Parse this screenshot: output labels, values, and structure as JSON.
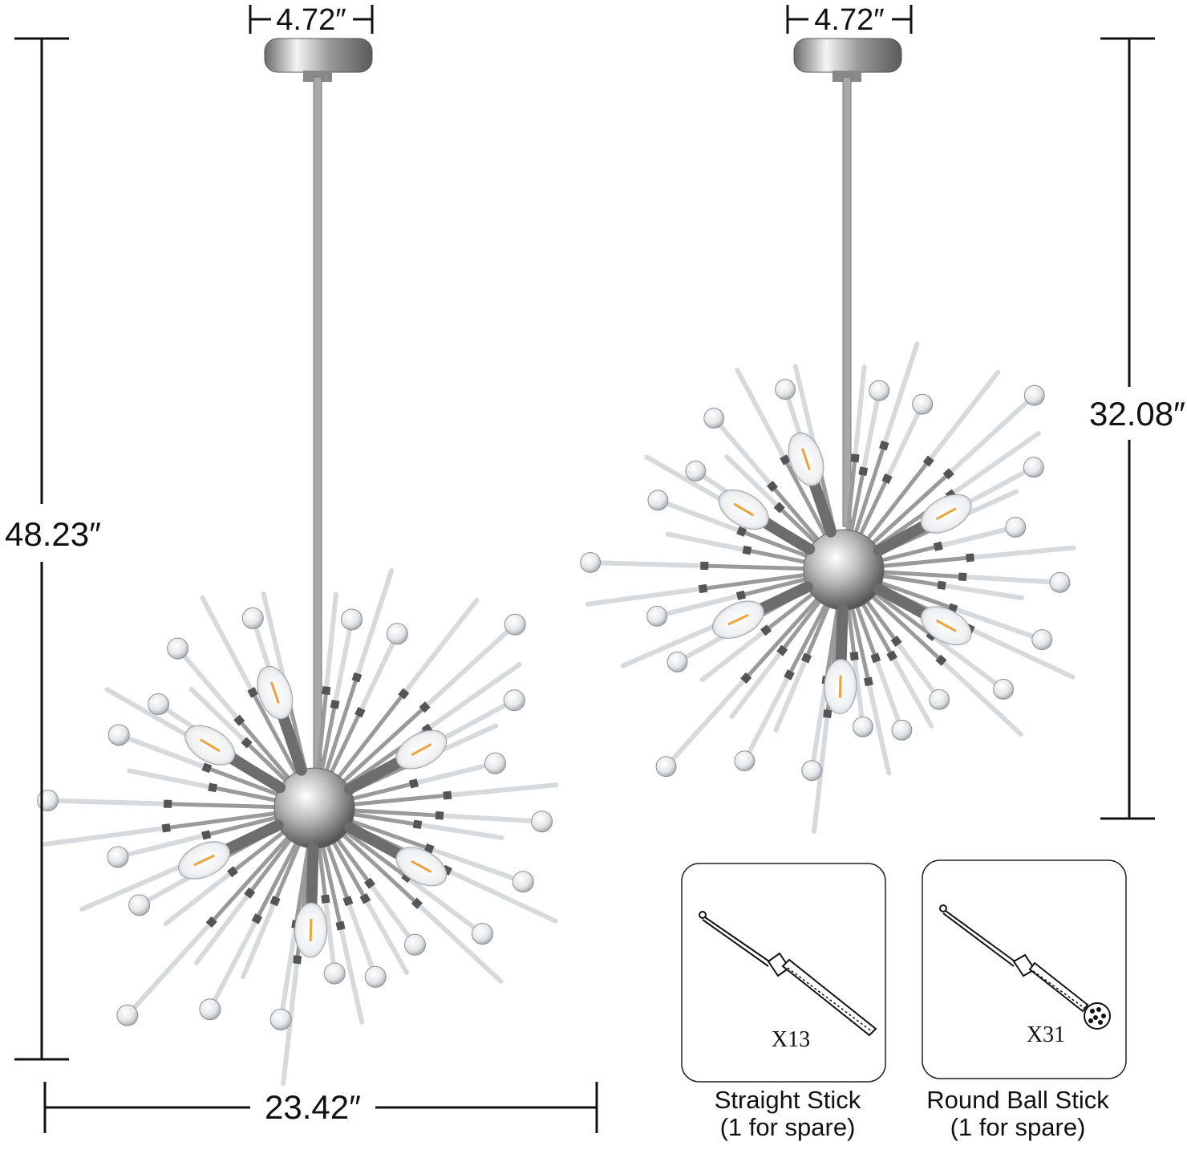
{
  "dimensions": {
    "left_canopy_width": "4.72″",
    "right_canopy_width": "4.72″",
    "left_total_height": "48.23″",
    "right_total_height": "32.08″",
    "fixture_width": "23.42″"
  },
  "spare_parts": [
    {
      "name": "Straight Stick",
      "note": "(1 for spare)",
      "quantity": "X13"
    },
    {
      "name": "Round Ball Stick",
      "note": "(1 for spare)",
      "quantity": "X31"
    }
  ],
  "colors": {
    "chrome": "#9a9a9a",
    "bulb_glow": "#f0a23a",
    "line": "#111111"
  }
}
